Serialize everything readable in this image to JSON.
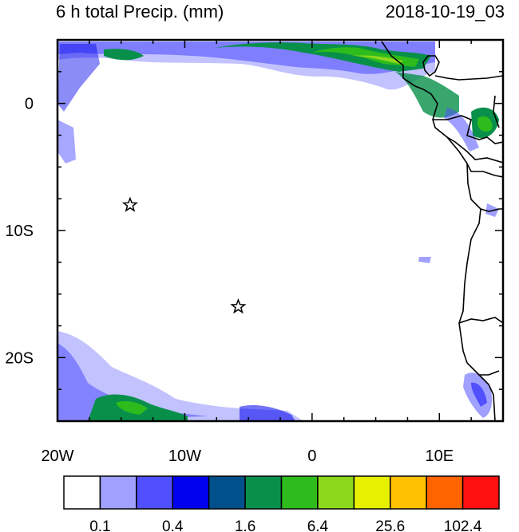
{
  "title": "6 h total Precip. (mm)",
  "datetime": "2018-10-19_03",
  "map": {
    "lon_range": [
      -20,
      15
    ],
    "lat_range": [
      -25,
      5
    ],
    "x_tick_labels": [
      {
        "lon": -20,
        "label": "20W"
      },
      {
        "lon": -10,
        "label": "10W"
      },
      {
        "lon": 0,
        "label": "0"
      },
      {
        "lon": 10,
        "label": "10E"
      }
    ],
    "y_tick_labels": [
      {
        "lat": 0,
        "label": "0"
      },
      {
        "lat": -10,
        "label": "10S"
      },
      {
        "lat": -20,
        "label": "20S"
      }
    ],
    "markers": [
      {
        "name": "star-marker-1",
        "lon": -14.3,
        "lat": -8.0
      },
      {
        "name": "star-marker-2",
        "lon": -5.8,
        "lat": -16.0
      }
    ]
  },
  "colorbar": {
    "colors": [
      "#ffffff",
      "#a0a0ff",
      "#5050ff",
      "#0000ee",
      "#00508c",
      "#08904a",
      "#2ebc1c",
      "#8cd81c",
      "#e6f000",
      "#ffc000",
      "#ff6400",
      "#ff1010"
    ],
    "labels": [
      "0.1",
      "0.4",
      "1.6",
      "6.4",
      "25.6",
      "102.4"
    ],
    "label_after_box_index": [
      1,
      3,
      5,
      7,
      9,
      11
    ]
  }
}
